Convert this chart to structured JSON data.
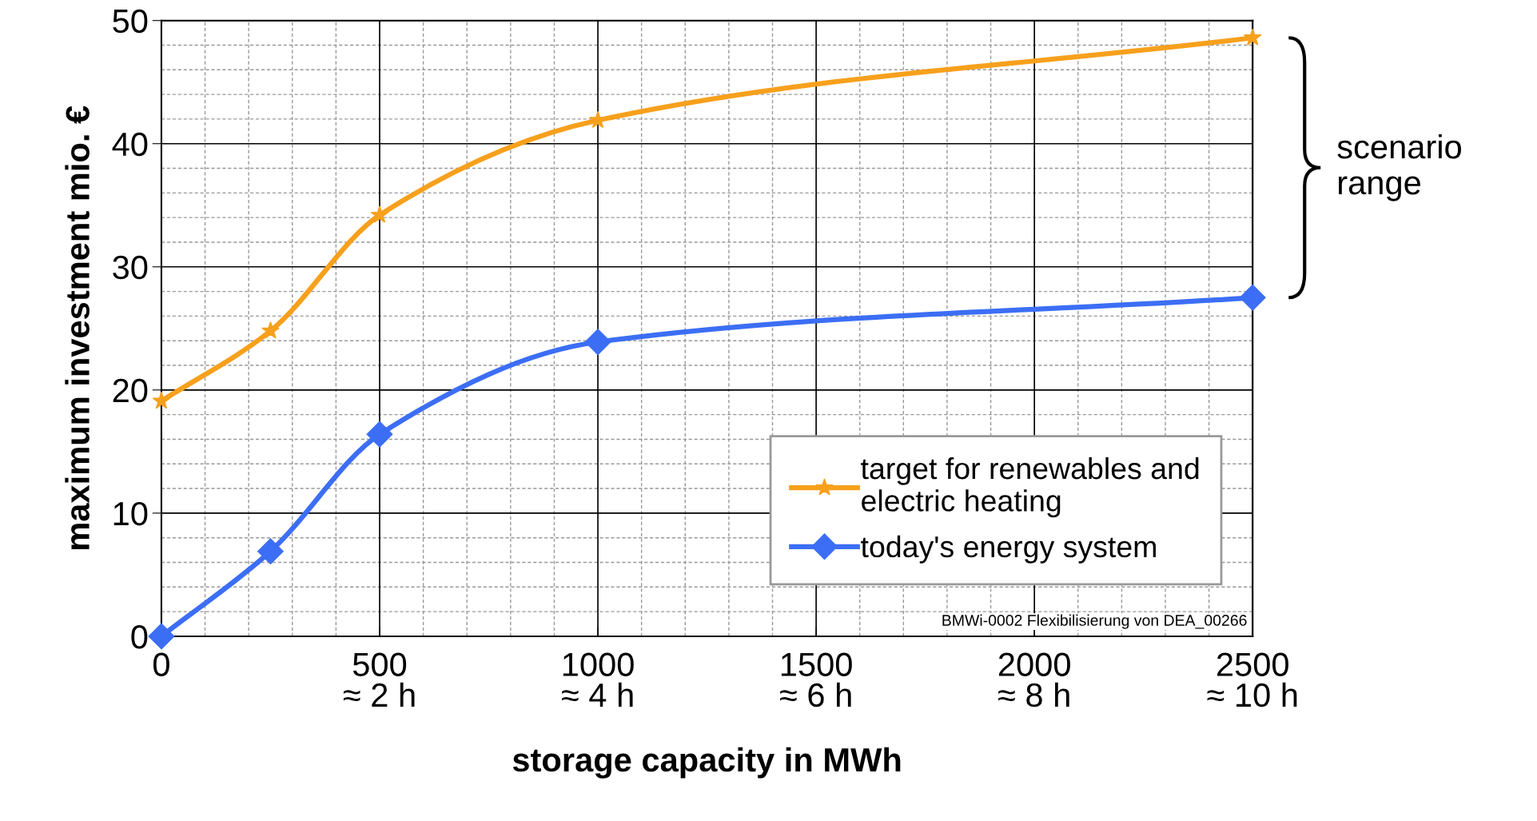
{
  "chart_data": {
    "type": "line",
    "xlabel": "storage capacity in MWh",
    "ylabel": "maximum investment mio. €",
    "x": [
      0,
      250,
      500,
      1000,
      2500
    ],
    "series": [
      {
        "name": "target for renewables and\nelectric heating",
        "color": "#f7a01c",
        "marker": "star",
        "values": [
          19.1,
          24.8,
          34.2,
          41.9,
          48.6
        ]
      },
      {
        "name": "today's energy system",
        "color": "#3c6ef5",
        "marker": "diamond",
        "values": [
          0,
          6.9,
          16.4,
          23.9,
          27.5
        ]
      }
    ],
    "xlim": [
      0,
      2500
    ],
    "ylim": [
      0,
      50
    ],
    "xticks": [
      0,
      500,
      1000,
      1500,
      2000,
      2500
    ],
    "x2lim": [
      0,
      10
    ],
    "x2ticks": [
      {
        "value": 2,
        "label": "≈ 2 h"
      },
      {
        "value": 4,
        "label": "≈ 4 h"
      },
      {
        "value": 6,
        "label": "≈ 6 h"
      },
      {
        "value": 8,
        "label": "≈ 8 h"
      },
      {
        "value": 10,
        "label": "≈ 10 h"
      }
    ],
    "yticks": [
      0,
      10,
      20,
      30,
      40,
      50
    ],
    "grid": true,
    "legend": "bottom right",
    "line_style": "solid",
    "annotations": [
      "scenario\nrange",
      "BMWi-0002 Flexibilisierung von DEA_00266"
    ]
  }
}
